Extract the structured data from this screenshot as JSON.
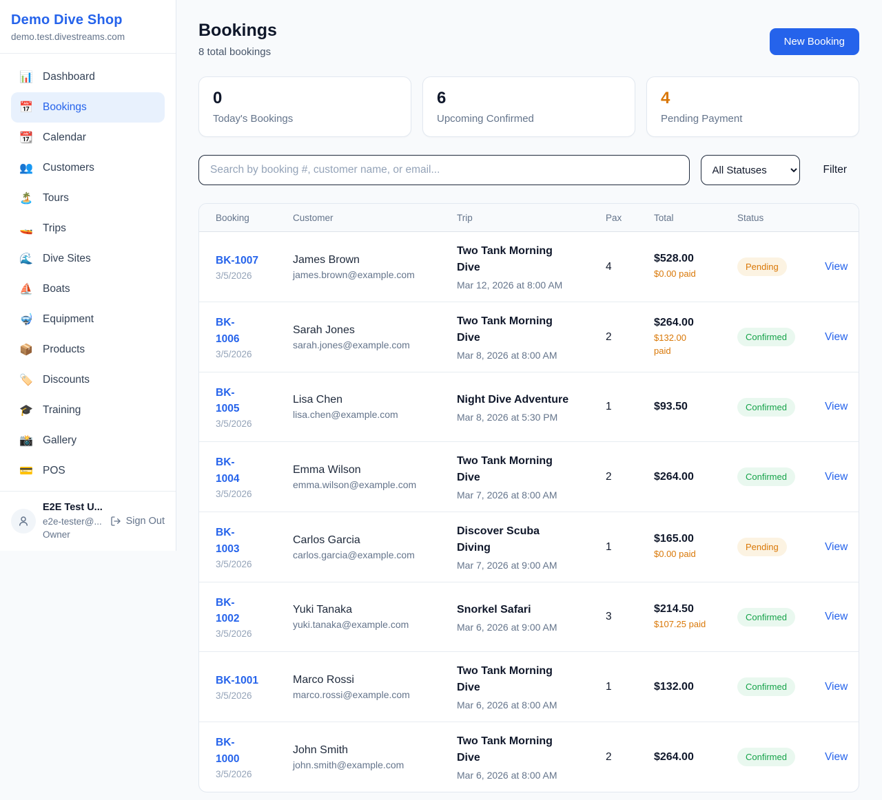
{
  "brand": {
    "name": "Demo Dive Shop",
    "domain": "demo.test.divestreams.com"
  },
  "sidebar": {
    "items": [
      {
        "key": "dashboard",
        "icon": "📊",
        "label": "Dashboard",
        "active": false
      },
      {
        "key": "bookings",
        "icon": "📅",
        "label": "Bookings",
        "active": true
      },
      {
        "key": "calendar",
        "icon": "📆",
        "label": "Calendar",
        "active": false
      },
      {
        "key": "customers",
        "icon": "👥",
        "label": "Customers",
        "active": false
      },
      {
        "key": "tours",
        "icon": "🏝️",
        "label": "Tours",
        "active": false
      },
      {
        "key": "trips",
        "icon": "🚤",
        "label": "Trips",
        "active": false
      },
      {
        "key": "dive-sites",
        "icon": "🌊",
        "label": "Dive Sites",
        "active": false
      },
      {
        "key": "boats",
        "icon": "⛵",
        "label": "Boats",
        "active": false
      },
      {
        "key": "equipment",
        "icon": "🤿",
        "label": "Equipment",
        "active": false
      },
      {
        "key": "products",
        "icon": "📦",
        "label": "Products",
        "active": false
      },
      {
        "key": "discounts",
        "icon": "🏷️",
        "label": "Discounts",
        "active": false
      },
      {
        "key": "training",
        "icon": "🎓",
        "label": "Training",
        "active": false
      },
      {
        "key": "gallery",
        "icon": "📸",
        "label": "Gallery",
        "active": false
      },
      {
        "key": "pos",
        "icon": "💳",
        "label": "POS",
        "active": false
      }
    ]
  },
  "user": {
    "name": "E2E Test U...",
    "email": "e2e-tester@...",
    "role": "Owner",
    "sign_out_label": "Sign Out"
  },
  "header": {
    "title": "Bookings",
    "subtitle": "8 total bookings",
    "new_booking_label": "New Booking"
  },
  "stats": [
    {
      "value": "0",
      "label": "Today's Bookings",
      "accent": false
    },
    {
      "value": "6",
      "label": "Upcoming Confirmed",
      "accent": false
    },
    {
      "value": "4",
      "label": "Pending Payment",
      "accent": true
    }
  ],
  "controls": {
    "search_placeholder": "Search by booking #, customer name, or email...",
    "status_filter_value": "All Statuses",
    "filter_label": "Filter"
  },
  "colors": {
    "accent_blue": "#2563eb",
    "pending_orange": "#d97706",
    "confirmed_green": "#16a34a"
  },
  "table": {
    "columns": [
      "Booking",
      "Customer",
      "Trip",
      "Pax",
      "Total",
      "Status"
    ],
    "view_label": "View",
    "rows": [
      {
        "id": "BK-1007",
        "date": "3/5/2026",
        "name": "James Brown",
        "email": "james.brown@example.com",
        "trip": "Two Tank Morning\nDive",
        "time": "Mar 12, 2026 at 8:00 AM",
        "pax": "4",
        "total": "$528.00",
        "paid": "$0.00 paid",
        "status": "Pending"
      },
      {
        "id": "BK-\n1006",
        "date": "3/5/2026",
        "name": "Sarah Jones",
        "email": "sarah.jones@example.com",
        "trip": "Two Tank Morning\nDive",
        "time": "Mar 8, 2026 at 8:00 AM",
        "pax": "2",
        "total": "$264.00",
        "paid": "$132.00\npaid",
        "status": "Confirmed"
      },
      {
        "id": "BK-\n1005",
        "date": "3/5/2026",
        "name": "Lisa Chen",
        "email": "lisa.chen@example.com",
        "trip": "Night Dive Adventure",
        "time": "Mar 8, 2026 at 5:30 PM",
        "pax": "1",
        "total": "$93.50",
        "paid": "",
        "status": "Confirmed"
      },
      {
        "id": "BK-\n1004",
        "date": "3/5/2026",
        "name": "Emma Wilson",
        "email": "emma.wilson@example.com",
        "trip": "Two Tank Morning\nDive",
        "time": "Mar 7, 2026 at 8:00 AM",
        "pax": "2",
        "total": "$264.00",
        "paid": "",
        "status": "Confirmed"
      },
      {
        "id": "BK-\n1003",
        "date": "3/5/2026",
        "name": "Carlos Garcia",
        "email": "carlos.garcia@example.com",
        "trip": "Discover Scuba\nDiving",
        "time": "Mar 7, 2026 at 9:00 AM",
        "pax": "1",
        "total": "$165.00",
        "paid": "$0.00 paid",
        "status": "Pending"
      },
      {
        "id": "BK-\n1002",
        "date": "3/5/2026",
        "name": "Yuki Tanaka",
        "email": "yuki.tanaka@example.com",
        "trip": "Snorkel Safari",
        "time": "Mar 6, 2026 at 9:00 AM",
        "pax": "3",
        "total": "$214.50",
        "paid": "$107.25 paid",
        "status": "Confirmed"
      },
      {
        "id": "BK-1001",
        "date": "3/5/2026",
        "name": "Marco Rossi",
        "email": "marco.rossi@example.com",
        "trip": "Two Tank Morning\nDive",
        "time": "Mar 6, 2026 at 8:00 AM",
        "pax": "1",
        "total": "$132.00",
        "paid": "",
        "status": "Confirmed"
      },
      {
        "id": "BK-\n1000",
        "date": "3/5/2026",
        "name": "John Smith",
        "email": "john.smith@example.com",
        "trip": "Two Tank Morning\nDive",
        "time": "Mar 6, 2026 at 8:00 AM",
        "pax": "2",
        "total": "$264.00",
        "paid": "",
        "status": "Confirmed"
      }
    ]
  }
}
